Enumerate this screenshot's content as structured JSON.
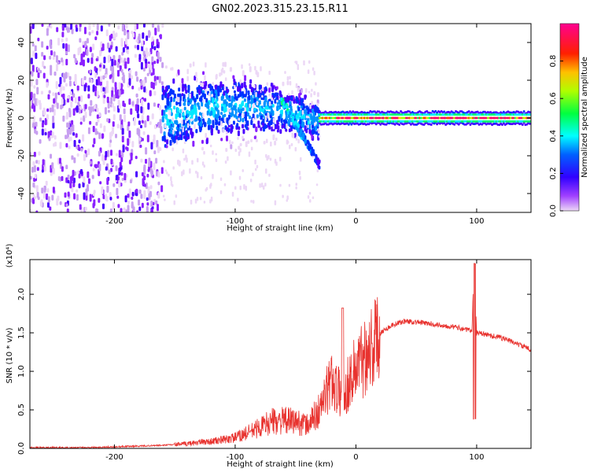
{
  "chart_data": [
    {
      "type": "heatmap",
      "title": "GN02.2023.315.23.15.R11",
      "xlabel": "Height of straight line (km)",
      "ylabel": "Frequency (Hz)",
      "xlim": [
        -270,
        145
      ],
      "ylim": [
        -50,
        50
      ],
      "xticks": [
        -200,
        -100,
        0,
        100
      ],
      "yticks": [
        -40,
        -20,
        0,
        20,
        40
      ],
      "colorbar": {
        "label": "Normalized spectral amplitude",
        "range": [
          0,
          1
        ],
        "ticks": [
          "0.0",
          "0.2",
          "0.4",
          "0.6",
          "0.8"
        ],
        "colors": [
          "#e0c8f0",
          "#7a00ff",
          "#0000ff",
          "#00ffff",
          "#00ff00",
          "#ffff00",
          "#ff8000",
          "#ff0000",
          "#ff0080"
        ]
      },
      "features": {
        "noise_region_km": [
          -270,
          -160
        ],
        "spread_region_km": [
          -160,
          -30
        ],
        "descending_branch": {
          "x_km": [
            -62,
            -30
          ],
          "freq_hz": [
            10,
            -25
          ]
        },
        "carrier_line": {
          "x_km": [
            -30,
            145
          ],
          "freq_hz": 0
        }
      }
    },
    {
      "type": "line",
      "xlabel": "Height of straight line (km)",
      "ylabel": "SNR (10 * v/v)",
      "y_multiplier": "(x10⁴)",
      "xlim": [
        -270,
        145
      ],
      "ylim": [
        0,
        2.45
      ],
      "xticks": [
        -200,
        -100,
        0,
        100
      ],
      "yticks": [
        "0.0",
        "0.5",
        "1.0",
        "1.5",
        "2.0"
      ],
      "series": [
        {
          "color": "#e8322e",
          "x": [
            -270,
            -250,
            -230,
            -200,
            -180,
            -160,
            -150,
            -140,
            -130,
            -120,
            -110,
            -100,
            -90,
            -80,
            -70,
            -60,
            -50,
            -40,
            -30,
            -25,
            -20,
            -15,
            -10,
            -5,
            0,
            5,
            10,
            15,
            20,
            25,
            30,
            40,
            50,
            60,
            70,
            80,
            90,
            96,
            98,
            100,
            110,
            120,
            130,
            145
          ],
          "y": [
            0.01,
            0.01,
            0.01,
            0.02,
            0.03,
            0.04,
            0.05,
            0.06,
            0.08,
            0.09,
            0.11,
            0.14,
            0.2,
            0.27,
            0.35,
            0.36,
            0.35,
            0.3,
            0.5,
            0.7,
            0.9,
            0.75,
            0.7,
            0.9,
            1.05,
            1.15,
            1.3,
            1.35,
            1.5,
            1.55,
            1.6,
            1.65,
            1.64,
            1.62,
            1.6,
            1.58,
            1.55,
            1.52,
            2.45,
            1.5,
            1.47,
            1.44,
            1.38,
            1.28
          ]
        }
      ]
    }
  ]
}
